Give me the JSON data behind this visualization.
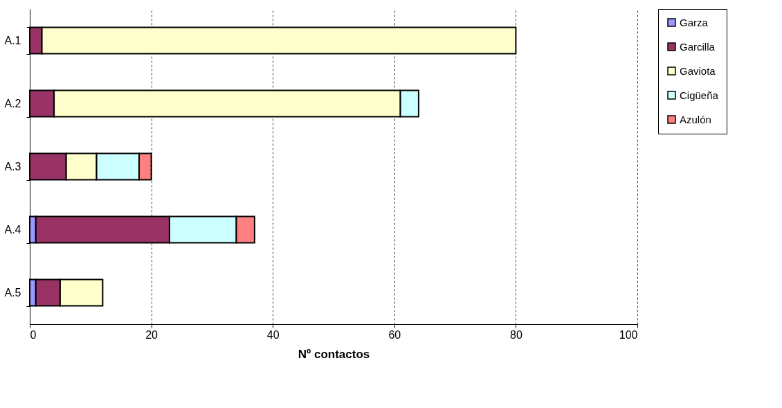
{
  "chart_data": {
    "type": "bar",
    "orientation": "horizontal",
    "stacked": true,
    "xlabel": "Nº contactos",
    "categories": [
      "A.1",
      "A.2",
      "A.3",
      "A.4",
      "A.5"
    ],
    "series": [
      {
        "name": "Garza",
        "color": "#9999ff",
        "values": [
          null,
          null,
          null,
          1,
          1
        ]
      },
      {
        "name": "Garcilla",
        "color": "#993366",
        "values": [
          2,
          4,
          6,
          22,
          4
        ]
      },
      {
        "name": "Gaviota",
        "color": "#ffffcc",
        "values": [
          78,
          57,
          5,
          null,
          7
        ]
      },
      {
        "name": "Cigüeña",
        "color": "#ccffff",
        "values": [
          null,
          3,
          7,
          11,
          null
        ]
      },
      {
        "name": "Azulón",
        "color": "#ff8080",
        "values": [
          null,
          null,
          2,
          3,
          null
        ]
      }
    ],
    "xlim": [
      0,
      100
    ],
    "xticks": [
      0,
      20,
      40,
      60,
      80,
      100
    ],
    "grid": "x",
    "legend": "right"
  }
}
